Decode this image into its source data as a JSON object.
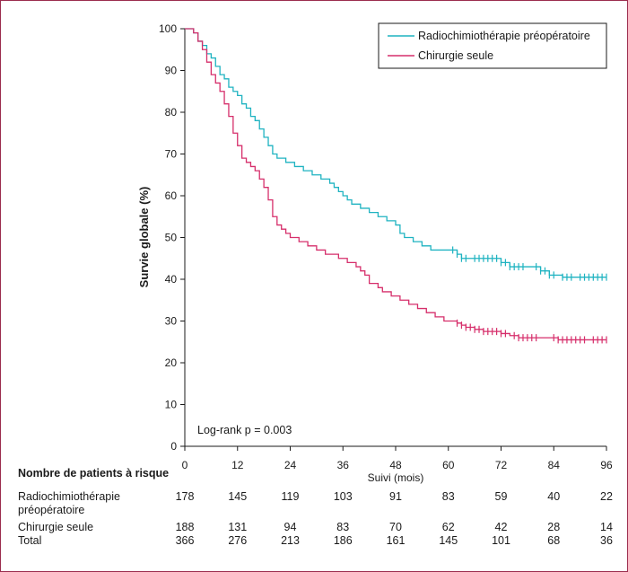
{
  "chart_data": {
    "type": "line",
    "subtype": "kaplan-meier",
    "ylabel": "Survie globale (%)",
    "xlabel": "Suivi (mois)",
    "xlim": [
      0,
      96
    ],
    "ylim": [
      0,
      100
    ],
    "xticks": [
      0,
      12,
      24,
      36,
      48,
      60,
      72,
      84,
      96
    ],
    "yticks": [
      0,
      10,
      20,
      30,
      40,
      50,
      60,
      70,
      80,
      90,
      100
    ],
    "grid": false,
    "legend_position": "top-right",
    "annotation": "Log-rank p = 0.003",
    "series": [
      {
        "name": "Radiochimiothérapie préopératoire",
        "color": "#1fb3c1",
        "points": [
          [
            0,
            100
          ],
          [
            2,
            99
          ],
          [
            3,
            97
          ],
          [
            4,
            96
          ],
          [
            5,
            94
          ],
          [
            6,
            93
          ],
          [
            7,
            91
          ],
          [
            8,
            89
          ],
          [
            9,
            88
          ],
          [
            10,
            86
          ],
          [
            11,
            85
          ],
          [
            12,
            84
          ],
          [
            13,
            82
          ],
          [
            14,
            81
          ],
          [
            15,
            79
          ],
          [
            16,
            78
          ],
          [
            17,
            76
          ],
          [
            18,
            74
          ],
          [
            19,
            72
          ],
          [
            20,
            70
          ],
          [
            21,
            69
          ],
          [
            22,
            69
          ],
          [
            23,
            68
          ],
          [
            25,
            67
          ],
          [
            27,
            66
          ],
          [
            29,
            65
          ],
          [
            31,
            64
          ],
          [
            33,
            63
          ],
          [
            34,
            62
          ],
          [
            35,
            61
          ],
          [
            36,
            60
          ],
          [
            37,
            59
          ],
          [
            38,
            58
          ],
          [
            40,
            57
          ],
          [
            42,
            56
          ],
          [
            44,
            55
          ],
          [
            46,
            54
          ],
          [
            48,
            53
          ],
          [
            49,
            51
          ],
          [
            50,
            50
          ],
          [
            52,
            49
          ],
          [
            54,
            48
          ],
          [
            56,
            47
          ],
          [
            58,
            47
          ],
          [
            60,
            47
          ],
          [
            62,
            46
          ],
          [
            63,
            45
          ],
          [
            66,
            45
          ],
          [
            72,
            44
          ],
          [
            74,
            43
          ],
          [
            76,
            43
          ],
          [
            80,
            43
          ],
          [
            81,
            42
          ],
          [
            82,
            42
          ],
          [
            83,
            41
          ],
          [
            85,
            41
          ],
          [
            86,
            40.5
          ],
          [
            96,
            40.5
          ]
        ],
        "censor_times": [
          61,
          62,
          63,
          64,
          66,
          67,
          68,
          69,
          70,
          71,
          72,
          73,
          74,
          75,
          76,
          77,
          80,
          81,
          82,
          83,
          84,
          86,
          87,
          88,
          90,
          91,
          92,
          93,
          94,
          95,
          96
        ]
      },
      {
        "name": "Chirurgie seule",
        "color": "#d62f6b",
        "points": [
          [
            0,
            100
          ],
          [
            2,
            99
          ],
          [
            3,
            97
          ],
          [
            4,
            95
          ],
          [
            5,
            92
          ],
          [
            6,
            89
          ],
          [
            7,
            87
          ],
          [
            8,
            85
          ],
          [
            9,
            82
          ],
          [
            10,
            79
          ],
          [
            11,
            75
          ],
          [
            12,
            72
          ],
          [
            13,
            69
          ],
          [
            14,
            68
          ],
          [
            15,
            67
          ],
          [
            16,
            66
          ],
          [
            17,
            64
          ],
          [
            18,
            62
          ],
          [
            19,
            59
          ],
          [
            20,
            55
          ],
          [
            21,
            53
          ],
          [
            22,
            52
          ],
          [
            23,
            51
          ],
          [
            24,
            50
          ],
          [
            25,
            50
          ],
          [
            26,
            49
          ],
          [
            28,
            48
          ],
          [
            30,
            47
          ],
          [
            32,
            46
          ],
          [
            35,
            45
          ],
          [
            37,
            44
          ],
          [
            39,
            43
          ],
          [
            40,
            42
          ],
          [
            41,
            41
          ],
          [
            42,
            39
          ],
          [
            44,
            38
          ],
          [
            45,
            37
          ],
          [
            47,
            36
          ],
          [
            49,
            35
          ],
          [
            51,
            34
          ],
          [
            53,
            33
          ],
          [
            55,
            32
          ],
          [
            57,
            31
          ],
          [
            59,
            30
          ],
          [
            61,
            30
          ],
          [
            62,
            29.5
          ],
          [
            63,
            29
          ],
          [
            64,
            28.5
          ],
          [
            66,
            28
          ],
          [
            68,
            27.5
          ],
          [
            72,
            27
          ],
          [
            74,
            26.5
          ],
          [
            76,
            26
          ],
          [
            78,
            26
          ],
          [
            84,
            26
          ],
          [
            85,
            25.5
          ],
          [
            96,
            25.5
          ]
        ],
        "censor_times": [
          62,
          63,
          64,
          65,
          66,
          67,
          68,
          69,
          70,
          71,
          72,
          73,
          75,
          76,
          77,
          78,
          79,
          80,
          84,
          85,
          86,
          87,
          88,
          89,
          90,
          91,
          93,
          94,
          95,
          96
        ]
      }
    ]
  },
  "risk_table": {
    "title": "Nombre de patients à risque",
    "rows": [
      {
        "label": "Radiochimiothérapie",
        "label2": "préopératoire",
        "values": [
          "178",
          "145",
          "119",
          "103",
          "91",
          "83",
          "59",
          "40",
          "22"
        ]
      },
      {
        "label": "Chirurgie seule",
        "label2": "",
        "values": [
          "188",
          "131",
          "94",
          "83",
          "70",
          "62",
          "42",
          "28",
          "14"
        ]
      },
      {
        "label": "Total",
        "label2": "",
        "values": [
          "366",
          "276",
          "213",
          "186",
          "161",
          "145",
          "101",
          "68",
          "36"
        ]
      }
    ]
  }
}
